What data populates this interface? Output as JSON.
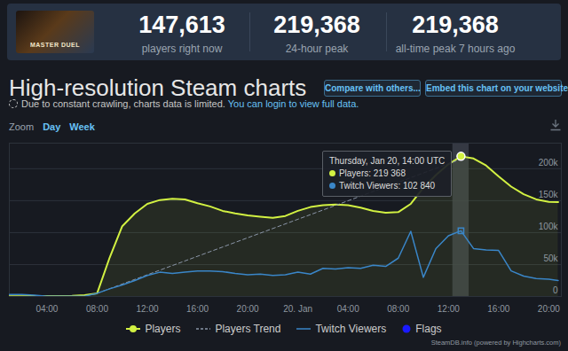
{
  "header": {
    "game": "MASTER DUEL",
    "stats": [
      {
        "value": 147613,
        "label": "147,613",
        "caption": "players right now"
      },
      {
        "value": 219368,
        "label": "219,368",
        "caption": "24-hour peak"
      },
      {
        "value": 219368,
        "label": "219,368",
        "caption": "all-time peak 7 hours ago"
      }
    ]
  },
  "page": {
    "title": "High-resolution Steam charts",
    "buttons": [
      "Compare with others...",
      "Embed this chart on your website"
    ],
    "notice": "Due to constant crawling, charts data is limited.",
    "notice_link": "You can login to view full data.",
    "zoom_label": "Zoom",
    "zoom_options": [
      "Day",
      "Week"
    ],
    "credit": "SteamDB.info (powered by Highcharts.com)"
  },
  "chart_data": {
    "type": "line",
    "x": [
      1,
      2,
      3,
      4,
      5,
      6,
      7,
      8,
      9,
      10,
      11,
      12,
      13,
      14,
      15,
      16,
      17,
      18,
      19,
      20,
      21,
      22,
      23,
      24,
      25,
      26,
      27,
      28,
      29,
      30,
      31,
      32,
      33,
      34,
      35,
      36,
      37,
      38,
      39,
      40,
      41,
      42,
      43,
      44,
      44.75
    ],
    "series": [
      {
        "name": "Players",
        "type": "area",
        "color": "#d2f142",
        "values": [
          500,
          500,
          600,
          700,
          800,
          1000,
          2000,
          5000,
          61000,
          110000,
          130000,
          145000,
          151000,
          153000,
          152000,
          146000,
          141000,
          134000,
          130000,
          127000,
          125000,
          123000,
          126000,
          134000,
          140000,
          143000,
          144000,
          143000,
          139000,
          134000,
          131000,
          132000,
          145000,
          170000,
          190000,
          207000,
          219368,
          216000,
          205000,
          188000,
          172000,
          160000,
          152000,
          148000,
          147613
        ]
      },
      {
        "name": "Players Trend",
        "type": "line",
        "line_style": "dashed",
        "color": "#8b96a8",
        "x": [
          8,
          37
        ],
        "values": [
          5000,
          215000
        ]
      },
      {
        "name": "Twitch Viewers",
        "type": "line",
        "color": "#3a86c8",
        "values": [
          3000,
          3000,
          2000,
          500,
          300,
          300,
          500,
          5000,
          12000,
          18000,
          25000,
          33000,
          38000,
          36000,
          38000,
          40000,
          40000,
          39000,
          36000,
          34000,
          35000,
          33000,
          34000,
          38000,
          35000,
          44000,
          43000,
          45000,
          44000,
          49000,
          47000,
          60000,
          102000,
          30000,
          75000,
          95000,
          102840,
          75000,
          73000,
          72000,
          40000,
          32000,
          28000,
          27000,
          25000
        ]
      },
      {
        "name": "Flags",
        "type": "flags",
        "marker": "circle",
        "color": "#1a1aff",
        "x": [],
        "values": []
      }
    ],
    "xlim": [
      1,
      45
    ],
    "xticks": [
      {
        "value": 4,
        "label": "04:00"
      },
      {
        "value": 8,
        "label": "08:00"
      },
      {
        "value": 12,
        "label": "12:00"
      },
      {
        "value": 16,
        "label": "16:00"
      },
      {
        "value": 20,
        "label": "20:00"
      },
      {
        "value": 24,
        "label": "20. Jan"
      },
      {
        "value": 28,
        "label": "04:00"
      },
      {
        "value": 32,
        "label": "08:00"
      },
      {
        "value": 36,
        "label": "12:00"
      },
      {
        "value": 40,
        "label": "16:00"
      },
      {
        "value": 44,
        "label": "20:00"
      }
    ],
    "ylim": [
      0,
      240000
    ],
    "yticks": [
      0,
      {
        "value": 50000,
        "label": "50k"
      },
      {
        "value": 100000,
        "label": "100k"
      },
      {
        "value": 150000,
        "label": "150k"
      },
      {
        "value": 200000,
        "label": "200k"
      }
    ],
    "grid": true,
    "legend": "bottom",
    "tooltip": {
      "x": 37,
      "title": "Thursday, Jan 20, 14:00 UTC",
      "items": [
        {
          "series": "Players",
          "text": "Players: 219 368",
          "value": 219368
        },
        {
          "series": "Twitch Viewers",
          "text": "Twitch Viewers: 102 840",
          "value": 102840
        }
      ]
    }
  }
}
